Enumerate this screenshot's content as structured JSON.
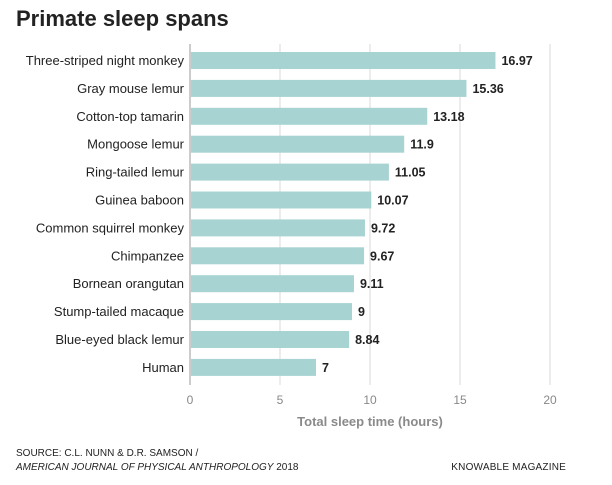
{
  "chart_data": {
    "type": "bar",
    "orientation": "horizontal",
    "title": "Primate sleep spans",
    "xlabel": "Total sleep time (hours)",
    "ylabel": "",
    "xlim": [
      0,
      20
    ],
    "xticks": [
      0,
      5,
      10,
      15,
      20
    ],
    "categories": [
      "Three-striped night monkey",
      "Gray mouse lemur",
      "Cotton-top tamarin",
      "Mongoose lemur",
      "Ring-tailed lemur",
      "Guinea baboon",
      "Common squirrel monkey",
      "Chimpanzee",
      "Bornean orangutan",
      "Stump-tailed macaque",
      "Blue-eyed black lemur",
      "Human"
    ],
    "values": [
      16.97,
      15.36,
      13.18,
      11.9,
      11.05,
      10.07,
      9.72,
      9.67,
      9.11,
      9,
      8.84,
      7
    ],
    "grid": true,
    "bar_color": "#a8d3d3"
  },
  "footer": {
    "source_line1": "SOURCE: C.L. NUNN & D.R. SAMSON /",
    "source_journal": "AMERICAN JOURNAL OF PHYSICAL ANTHROPOLOGY",
    "source_year": " 2018",
    "credit": "KNOWABLE MAGAZINE"
  }
}
